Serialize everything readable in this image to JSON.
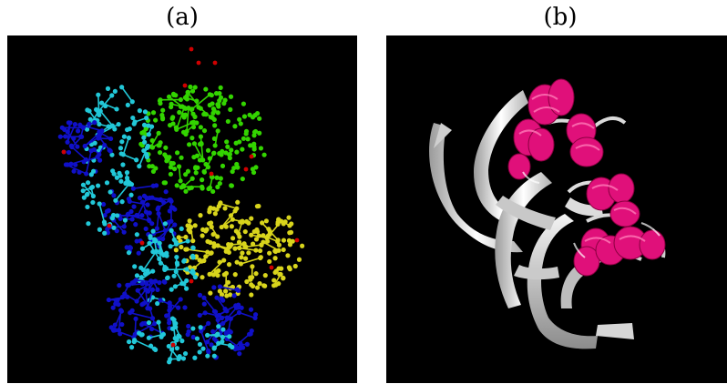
{
  "figure": {
    "panels": [
      {
        "label": "(a)",
        "description_icon": "ball-and-stick-molecule-icon"
      },
      {
        "label": "(b)",
        "description_icon": "ribbon-protein-icon"
      }
    ]
  },
  "colors": {
    "background": "#000000",
    "chain_green": "#33d400",
    "chain_yellow": "#d8d41c",
    "chain_cyan": "#22c8d8",
    "chain_blue": "#1010c8",
    "atom_red": "#d00000",
    "ribbon_white": "#e8e8e8",
    "helix_pink": "#e0107a"
  }
}
